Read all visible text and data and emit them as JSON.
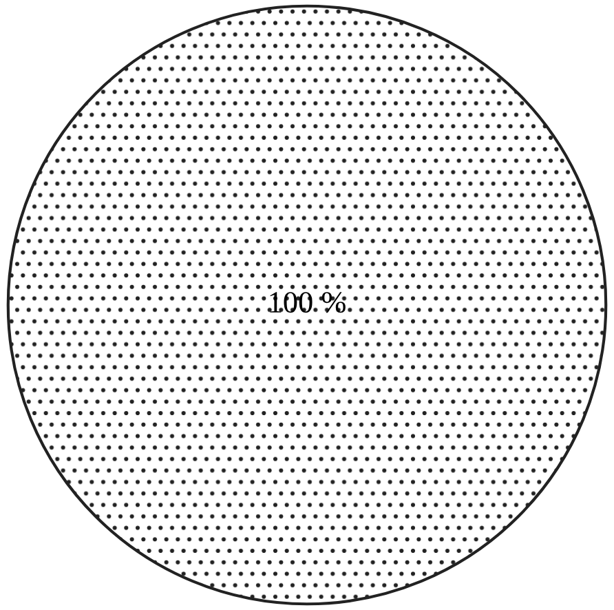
{
  "chart_data": {
    "type": "pie",
    "categories": [
      null
    ],
    "values": [
      100
    ],
    "colors": [
      "#ffffff"
    ],
    "value_labels": [
      "100 %"
    ]
  }
}
